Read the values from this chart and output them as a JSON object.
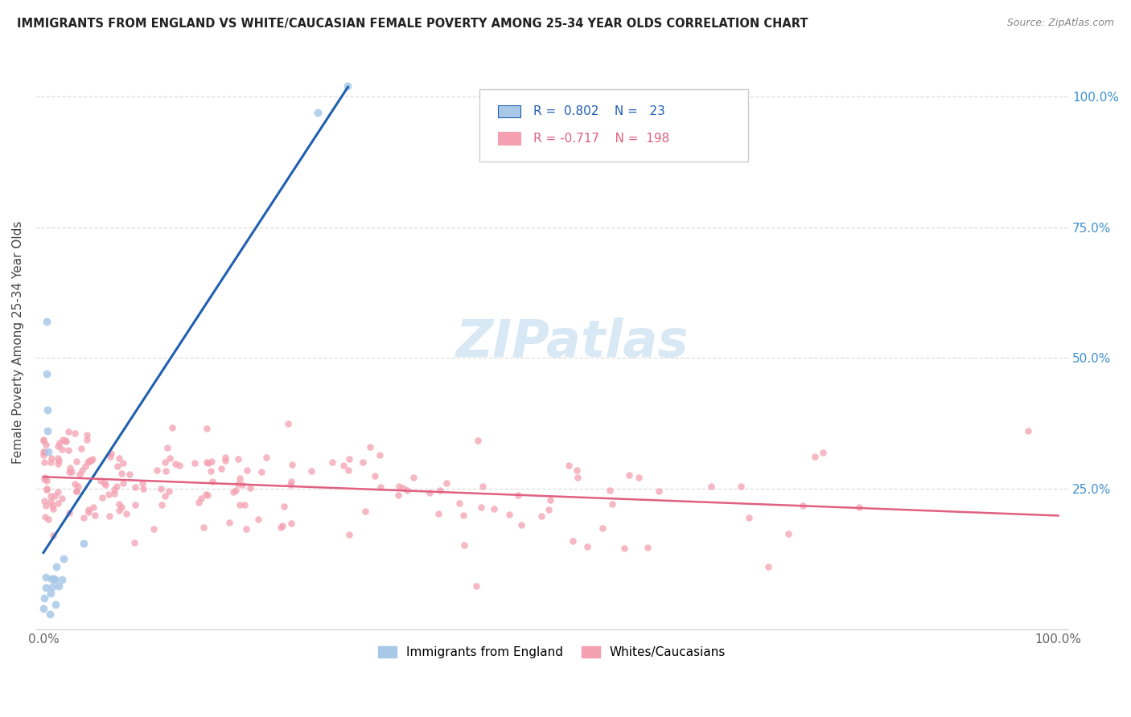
{
  "title": "IMMIGRANTS FROM ENGLAND VS WHITE/CAUCASIAN FEMALE POVERTY AMONG 25-34 YEAR OLDS CORRELATION CHART",
  "source": "Source: ZipAtlas.com",
  "ylabel": "Female Poverty Among 25-34 Year Olds",
  "blue_R": 0.802,
  "blue_N": 23,
  "pink_R": -0.717,
  "pink_N": 198,
  "blue_color": "#a8c8e8",
  "pink_color": "#f4a0b0",
  "blue_line_color": "#2060b0",
  "pink_line_color": "#e06080",
  "legend_labels": [
    "Immigrants from England",
    "Whites/Caucasians"
  ],
  "watermark_color": "#d8e8f4",
  "background_color": "#ffffff",
  "grid_color": "#dddddd",
  "right_axis_color": "#4090d0",
  "title_color": "#222222",
  "source_color": "#888888",
  "ylabel_color": "#444444"
}
